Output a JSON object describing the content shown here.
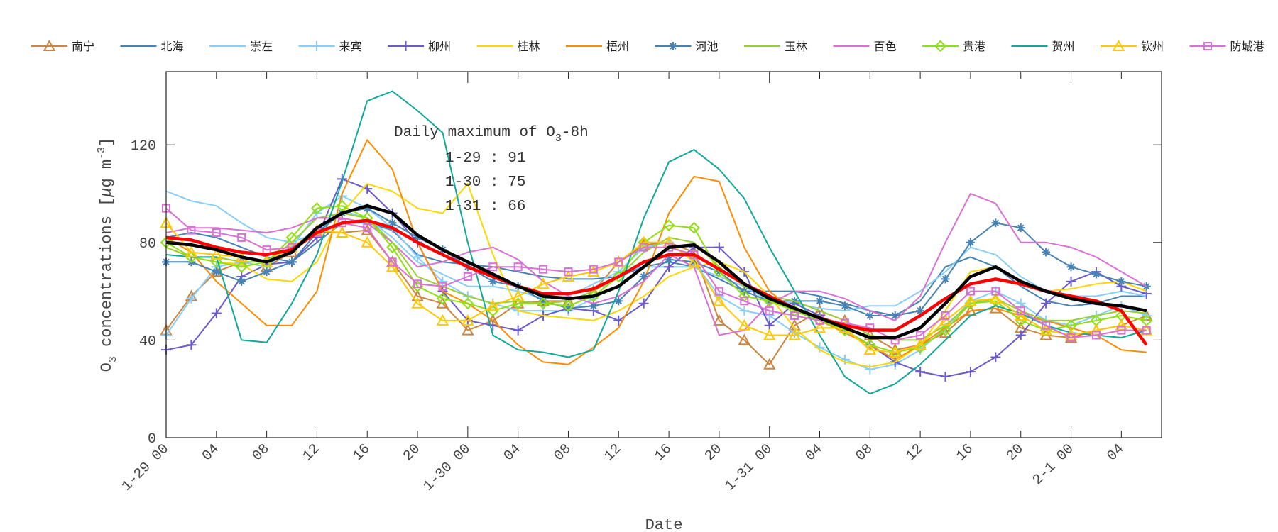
{
  "chart_data": {
    "type": "line",
    "xlabel": "Date",
    "ylabel": "O3 concentrations [μg m-3]",
    "ylabel_parts": {
      "main": "O",
      "sub": "3",
      "rest": " concentrations [",
      "mu": "μ",
      "unit": "g m",
      "sup": "-3",
      "close": "]"
    },
    "ylim": [
      0,
      150
    ],
    "xlim": [
      "1-29 00",
      "2-1 07"
    ],
    "y_ticks": [
      0,
      40,
      80,
      120
    ],
    "x_tick_labels": [
      "1-29 00",
      "04",
      "08",
      "12",
      "16",
      "20",
      "1-30 00",
      "04",
      "08",
      "12",
      "16",
      "20",
      "1-31 00",
      "04",
      "08",
      "12",
      "16",
      "20",
      "2-1 00",
      "04"
    ],
    "legend_placement": "top",
    "annotation": {
      "title": "Daily maximum of O",
      "title_sub": "3",
      "title_rest": "-8h",
      "lines": [
        "1-29 : 91",
        "1-30 : 75",
        "1-31 : 66"
      ]
    },
    "x": [
      "1-29 00",
      "1-29 02",
      "1-29 04",
      "1-29 06",
      "1-29 08",
      "1-29 10",
      "1-29 12",
      "1-29 14",
      "1-29 16",
      "1-29 18",
      "1-29 20",
      "1-29 22",
      "1-30 00",
      "1-30 02",
      "1-30 04",
      "1-30 06",
      "1-30 08",
      "1-30 10",
      "1-30 12",
      "1-30 14",
      "1-30 16",
      "1-30 18",
      "1-30 20",
      "1-30 22",
      "1-31 00",
      "1-31 02",
      "1-31 04",
      "1-31 06",
      "1-31 08",
      "1-31 10",
      "1-31 12",
      "1-31 14",
      "1-31 16",
      "1-31 18",
      "1-31 20",
      "1-31 22",
      "2-1 00",
      "2-1 02",
      "2-1 04",
      "2-1 06"
    ],
    "series": [
      {
        "name": "南宁",
        "color": "#cd853f",
        "marker": "triangle",
        "values": [
          44,
          58,
          68,
          72,
          70,
          76,
          84,
          84,
          85,
          72,
          58,
          55,
          44,
          48,
          55,
          56,
          56,
          60,
          72,
          79,
          80,
          76,
          48,
          40,
          30,
          46,
          52,
          48,
          42,
          36,
          38,
          43,
          52,
          53,
          45,
          42,
          41,
          44,
          46,
          50
        ]
      },
      {
        "name": "北海",
        "color": "#4682b4",
        "marker": "none",
        "values": [
          82,
          84,
          82,
          78,
          74,
          72,
          80,
          88,
          88,
          85,
          75,
          72,
          71,
          70,
          68,
          66,
          65,
          65,
          66,
          70,
          72,
          70,
          65,
          60,
          60,
          60,
          58,
          55,
          52,
          50,
          56,
          70,
          74,
          70,
          62,
          56,
          54,
          55,
          58,
          58
        ]
      },
      {
        "name": "崇左",
        "color": "#87cefa",
        "marker": "none",
        "values": [
          101,
          97,
          95,
          88,
          82,
          80,
          84,
          93,
          90,
          82,
          72,
          67,
          62,
          62,
          60,
          57,
          58,
          63,
          68,
          70,
          70,
          70,
          66,
          62,
          56,
          55,
          53,
          52,
          54,
          54,
          60,
          68,
          78,
          75,
          66,
          60,
          58,
          58,
          60,
          58
        ]
      },
      {
        "name": "来宾",
        "color": "#87cefa",
        "marker": "plus",
        "values": [
          42,
          57,
          70,
          72,
          70,
          78,
          92,
          99,
          94,
          86,
          74,
          64,
          58,
          55,
          52,
          52,
          52,
          57,
          68,
          78,
          80,
          72,
          58,
          52,
          50,
          43,
          37,
          32,
          28,
          30,
          36,
          45,
          56,
          60,
          55,
          48,
          46,
          50,
          54,
          50
        ]
      },
      {
        "name": "柳州",
        "color": "#6a5acd",
        "marker": "plus",
        "values": [
          36,
          38,
          51,
          66,
          71,
          72,
          82,
          106,
          102,
          92,
          80,
          60,
          48,
          46,
          44,
          50,
          53,
          52,
          48,
          55,
          70,
          78,
          78,
          68,
          46,
          55,
          50,
          44,
          38,
          31,
          27,
          25,
          27,
          33,
          42,
          55,
          64,
          68,
          62,
          59
        ]
      },
      {
        "name": "桂林",
        "color": "#ffd700",
        "marker": "none",
        "values": [
          78,
          74,
          72,
          71,
          65,
          64,
          72,
          92,
          104,
          101,
          94,
          92,
          104,
          75,
          52,
          50,
          49,
          48,
          52,
          58,
          66,
          70,
          72,
          68,
          58,
          45,
          36,
          31,
          29,
          31,
          38,
          52,
          68,
          70,
          64,
          60,
          61,
          63,
          64,
          60
        ]
      },
      {
        "name": "梧州",
        "color": "#ff8c00",
        "marker": "none",
        "values": [
          82,
          76,
          64,
          55,
          46,
          46,
          60,
          100,
          122,
          110,
          80,
          60,
          55,
          48,
          38,
          31,
          30,
          37,
          45,
          64,
          92,
          107,
          105,
          78,
          60,
          52,
          48,
          43,
          38,
          32,
          38,
          45,
          52,
          53,
          50,
          48,
          45,
          42,
          36,
          35
        ]
      },
      {
        "name": "河池",
        "color": "#4682b4",
        "marker": "star",
        "values": [
          72,
          72,
          68,
          64,
          68,
          72,
          84,
          92,
          94,
          88,
          82,
          77,
          70,
          64,
          62,
          56,
          53,
          54,
          56,
          66,
          73,
          72,
          68,
          60,
          56,
          56,
          56,
          54,
          50,
          50,
          52,
          65,
          80,
          88,
          86,
          76,
          70,
          67,
          64,
          62
        ]
      },
      {
        "name": "玉林",
        "color": "#9acd32",
        "marker": "none",
        "values": [
          78,
          74,
          74,
          72,
          72,
          80,
          90,
          92,
          90,
          80,
          66,
          62,
          58,
          55,
          56,
          55,
          56,
          60,
          66,
          76,
          82,
          80,
          70,
          62,
          58,
          56,
          52,
          48,
          42,
          40,
          40,
          46,
          55,
          57,
          52,
          48,
          48,
          50,
          52,
          51
        ]
      },
      {
        "name": "百色",
        "color": "#da70d6",
        "marker": "none",
        "values": [
          84,
          86,
          86,
          85,
          84,
          86,
          90,
          90,
          88,
          80,
          70,
          72,
          76,
          78,
          73,
          64,
          58,
          55,
          58,
          64,
          75,
          70,
          42,
          44,
          55,
          60,
          60,
          57,
          52,
          48,
          58,
          80,
          100,
          96,
          80,
          80,
          78,
          74,
          68,
          62
        ]
      },
      {
        "name": "贵港",
        "color": "#8fe010",
        "marker": "diamond",
        "values": [
          80,
          74,
          72,
          70,
          72,
          82,
          94,
          95,
          90,
          78,
          62,
          57,
          55,
          52,
          55,
          55,
          54,
          58,
          66,
          80,
          87,
          86,
          68,
          58,
          56,
          52,
          48,
          44,
          38,
          35,
          37,
          44,
          55,
          56,
          48,
          44,
          46,
          48,
          50,
          48
        ]
      },
      {
        "name": "贺州",
        "color": "#12a89a",
        "marker": "none",
        "values": [
          75,
          74,
          74,
          40,
          39,
          55,
          75,
          105,
          138,
          142,
          134,
          125,
          80,
          42,
          36,
          35,
          33,
          36,
          60,
          90,
          113,
          118,
          110,
          98,
          78,
          60,
          42,
          25,
          18,
          22,
          30,
          40,
          50,
          54,
          51,
          46,
          43,
          42,
          41,
          44
        ]
      },
      {
        "name": "钦州",
        "color": "#ffc800",
        "marker": "triangle",
        "values": [
          88,
          76,
          75,
          74,
          72,
          78,
          85,
          84,
          80,
          70,
          55,
          48,
          48,
          54,
          58,
          63,
          66,
          68,
          72,
          80,
          80,
          72,
          56,
          46,
          42,
          42,
          45,
          45,
          36,
          35,
          38,
          48,
          56,
          57,
          50,
          44,
          42,
          44,
          46,
          44
        ]
      },
      {
        "name": "防城港",
        "color": "#da70d6",
        "marker": "square",
        "values": [
          94,
          85,
          84,
          82,
          77,
          78,
          84,
          88,
          86,
          72,
          63,
          62,
          66,
          70,
          70,
          69,
          68,
          69,
          72,
          78,
          78,
          75,
          60,
          56,
          52,
          50,
          48,
          47,
          45,
          40,
          42,
          50,
          60,
          60,
          52,
          46,
          41,
          42,
          44,
          44
        ]
      },
      {
        "color": "#ff0000",
        "marker": "none",
        "thick": true,
        "values": [
          82,
          81,
          78,
          76,
          75,
          77,
          84,
          88,
          89,
          86,
          80,
          75,
          70,
          66,
          62,
          59,
          59,
          61,
          66,
          72,
          75,
          75,
          69,
          63,
          58,
          53,
          49,
          46,
          44,
          44,
          50,
          57,
          63,
          65,
          63,
          60,
          58,
          56,
          52,
          38
        ]
      },
      {
        "color": "#000000",
        "marker": "none",
        "thick": true,
        "values": [
          80,
          79,
          77,
          74,
          72,
          76,
          86,
          92,
          95,
          92,
          83,
          77,
          72,
          67,
          62,
          58,
          57,
          58,
          62,
          70,
          78,
          79,
          72,
          63,
          57,
          53,
          49,
          45,
          41,
          41,
          45,
          55,
          66,
          70,
          64,
          60,
          57,
          55,
          54,
          52
        ]
      }
    ]
  }
}
